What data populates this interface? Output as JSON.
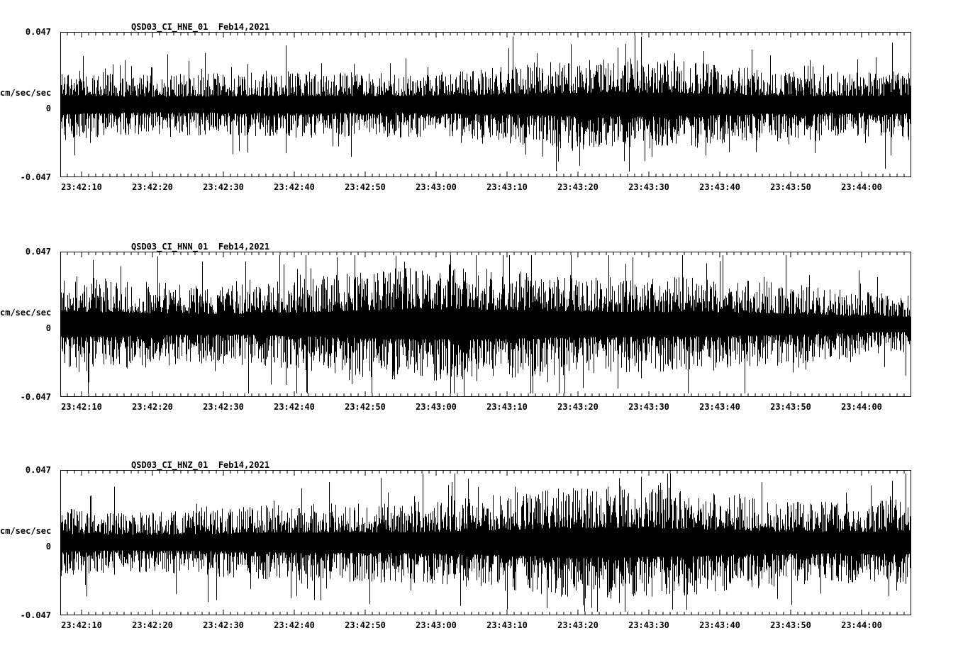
{
  "colors": {
    "background": "#ffffff",
    "trace": "#000000",
    "axis": "#000000"
  },
  "chart_data": [
    {
      "type": "line",
      "title": "QSD03_CI_HNE_01  Feb14,2021",
      "ylabel": "cm/sec/sec",
      "ylim": [
        -0.047,
        0.047
      ],
      "ytick_labels": [
        "0.047",
        "0",
        "-0.047"
      ],
      "x_tick_labels": [
        "23:42:10",
        "23:42:20",
        "23:42:30",
        "23:42:40",
        "23:42:50",
        "23:43:00",
        "23:43:10",
        "23:43:20",
        "23:43:30",
        "23:43:40",
        "23:43:50",
        "23:44:00"
      ],
      "x_tick_interval_seconds": 10,
      "grid": false,
      "legend": false,
      "series": [
        {
          "name": "HNE",
          "kind": "continuous-seismic-noise",
          "seed": 11,
          "approx_rms": 0.008,
          "approx_peak": 0.04
        }
      ]
    },
    {
      "type": "line",
      "title": "QSD03_CI_HNN_01  Feb14,2021",
      "ylabel": "cm/sec/sec",
      "ylim": [
        -0.047,
        0.047
      ],
      "ytick_labels": [
        "0.047",
        "0",
        "-0.047"
      ],
      "x_tick_labels": [
        "23:42:10",
        "23:42:20",
        "23:42:30",
        "23:42:40",
        "23:42:50",
        "23:43:00",
        "23:43:10",
        "23:43:20",
        "23:43:30",
        "23:43:40",
        "23:43:50",
        "23:44:00"
      ],
      "x_tick_interval_seconds": 10,
      "grid": false,
      "legend": false,
      "series": [
        {
          "name": "HNN",
          "kind": "continuous-seismic-noise",
          "seed": 22,
          "approx_rms": 0.009,
          "approx_peak": 0.044
        }
      ]
    },
    {
      "type": "line",
      "title": "QSD03_CI_HNZ_01  Feb14,2021",
      "ylabel": "cm/sec/sec",
      "ylim": [
        -0.047,
        0.047
      ],
      "ytick_labels": [
        "0.047",
        "0",
        "-0.047"
      ],
      "x_tick_labels": [
        "23:42:10",
        "23:42:20",
        "23:42:30",
        "23:42:40",
        "23:42:50",
        "23:43:00",
        "23:43:10",
        "23:43:20",
        "23:43:30",
        "23:43:40",
        "23:43:50",
        "23:44:00"
      ],
      "x_tick_interval_seconds": 10,
      "grid": false,
      "legend": false,
      "series": [
        {
          "name": "HNZ",
          "kind": "continuous-seismic-noise",
          "seed": 33,
          "approx_rms": 0.009,
          "approx_peak": 0.042
        }
      ]
    }
  ]
}
